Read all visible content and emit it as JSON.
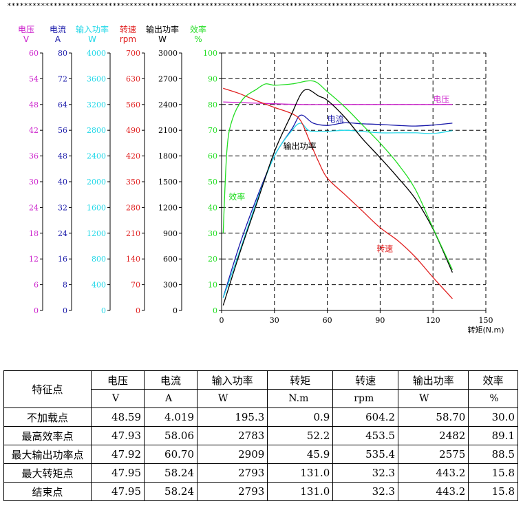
{
  "header": {
    "stars": "**********************************************************************************************************************************"
  },
  "chart_data": {
    "type": "line",
    "xlabel": "转矩(N.m)",
    "x_ticks": [
      0,
      30,
      60,
      90,
      120,
      150
    ],
    "xlim": [
      0,
      150
    ],
    "axes": [
      {
        "name": "电压",
        "unit": "V",
        "color": "#cc22cc",
        "max": 60,
        "ticks": [
          0,
          6,
          12,
          18,
          24,
          30,
          36,
          42,
          48,
          54,
          60
        ]
      },
      {
        "name": "电流",
        "unit": "A",
        "color": "#1a1aaa",
        "max": 80,
        "ticks": [
          0,
          8,
          16,
          24,
          32,
          40,
          48,
          56,
          64,
          72,
          80
        ]
      },
      {
        "name": "输入功率",
        "unit": "W",
        "color": "#22d8e8",
        "max": 4000,
        "ticks": [
          0,
          400,
          800,
          1200,
          1600,
          2000,
          2400,
          2800,
          3200,
          3600,
          4000
        ]
      },
      {
        "name": "转速",
        "unit": "rpm",
        "color": "#e02020",
        "max": 700,
        "ticks": [
          0,
          70,
          140,
          210,
          280,
          350,
          420,
          490,
          560,
          630,
          700
        ]
      },
      {
        "name": "输出功率",
        "unit": "W",
        "color": "#000000",
        "max": 3000,
        "ticks": [
          0,
          300,
          600,
          900,
          1200,
          1500,
          1800,
          2100,
          2400,
          2700,
          3000
        ]
      },
      {
        "name": "效率",
        "unit": "%",
        "color": "#22dd22",
        "max": 100,
        "ticks": [
          0,
          10,
          20,
          30,
          40,
          50,
          60,
          70,
          80,
          90,
          100
        ]
      }
    ],
    "series": [
      {
        "name": "电压",
        "axis": 0,
        "color": "#cc22cc",
        "label_at": [
          120,
          48.5
        ],
        "points": [
          [
            0.9,
            48.6
          ],
          [
            20,
            48.3
          ],
          [
            45,
            48.0
          ],
          [
            60,
            48.0
          ],
          [
            90,
            48.0
          ],
          [
            131,
            48.0
          ]
        ]
      },
      {
        "name": "电流",
        "axis": 1,
        "color": "#1a1aaa",
        "label_at": [
          60,
          58.6
        ],
        "points": [
          [
            0.9,
            4
          ],
          [
            10,
            20
          ],
          [
            20,
            35
          ],
          [
            30,
            48
          ],
          [
            40,
            56.5
          ],
          [
            45,
            60.7
          ],
          [
            52,
            58.2
          ],
          [
            60,
            57.5
          ],
          [
            70,
            58.3
          ],
          [
            80,
            58.0
          ],
          [
            90,
            57.8
          ],
          [
            100,
            57.5
          ],
          [
            110,
            57.3
          ],
          [
            120,
            57.6
          ],
          [
            131,
            58.2
          ]
        ]
      },
      {
        "name": "输入功率",
        "axis": 2,
        "color": "#22d8e8",
        "points": [
          [
            0.9,
            195
          ],
          [
            10,
            900
          ],
          [
            20,
            1700
          ],
          [
            30,
            2400
          ],
          [
            40,
            2800
          ],
          [
            45,
            2909
          ],
          [
            50,
            2790
          ],
          [
            60,
            2783
          ],
          [
            70,
            2800
          ],
          [
            80,
            2780
          ],
          [
            90,
            2760
          ],
          [
            100,
            2760
          ],
          [
            110,
            2760
          ],
          [
            120,
            2750
          ],
          [
            131,
            2793
          ]
        ]
      },
      {
        "name": "转速",
        "axis": 3,
        "color": "#e02020",
        "label_at": [
          88,
          160
        ],
        "points": [
          [
            0.9,
            604
          ],
          [
            10,
            590
          ],
          [
            20,
            570
          ],
          [
            30,
            552
          ],
          [
            40,
            535
          ],
          [
            45,
            515
          ],
          [
            50,
            460
          ],
          [
            55,
            405
          ],
          [
            60,
            360
          ],
          [
            70,
            315
          ],
          [
            80,
            270
          ],
          [
            90,
            225
          ],
          [
            100,
            190
          ],
          [
            110,
            145
          ],
          [
            120,
            90
          ],
          [
            131,
            32
          ]
        ]
      },
      {
        "name": "输出功率",
        "axis": 4,
        "color": "#000000",
        "label_at": [
          35,
          1880
        ],
        "points": [
          [
            0.9,
            59
          ],
          [
            10,
            650
          ],
          [
            20,
            1250
          ],
          [
            30,
            1850
          ],
          [
            40,
            2300
          ],
          [
            45,
            2520
          ],
          [
            49,
            2575
          ],
          [
            55,
            2500
          ],
          [
            60,
            2450
          ],
          [
            70,
            2250
          ],
          [
            80,
            2000
          ],
          [
            90,
            1780
          ],
          [
            100,
            1550
          ],
          [
            110,
            1300
          ],
          [
            120,
            950
          ],
          [
            131,
            443
          ]
        ]
      },
      {
        "name": "效率",
        "axis": 5,
        "color": "#22dd22",
        "label_at": [
          4,
          43
        ],
        "points": [
          [
            0.9,
            30
          ],
          [
            3,
            62
          ],
          [
            6,
            74
          ],
          [
            12,
            82
          ],
          [
            20,
            86
          ],
          [
            25,
            88
          ],
          [
            30,
            87.5
          ],
          [
            40,
            88
          ],
          [
            52,
            89.1
          ],
          [
            60,
            85
          ],
          [
            70,
            79
          ],
          [
            80,
            72
          ],
          [
            90,
            65
          ],
          [
            100,
            57
          ],
          [
            110,
            47
          ],
          [
            120,
            32
          ],
          [
            131,
            15.8
          ]
        ]
      }
    ]
  },
  "table": {
    "header_label": "特征点",
    "columns": [
      {
        "name": "电压",
        "unit": "V"
      },
      {
        "name": "电流",
        "unit": "A"
      },
      {
        "name": "输入功率",
        "unit": "W"
      },
      {
        "name": "转矩",
        "unit": "N.m"
      },
      {
        "name": "转速",
        "unit": "rpm"
      },
      {
        "name": "输出功率",
        "unit": "W"
      },
      {
        "name": "效率",
        "unit": "%"
      }
    ],
    "rows": [
      {
        "label": "不加载点",
        "values": [
          "48.59",
          "4.019",
          "195.3",
          "0.9",
          "604.2",
          "58.70",
          "30.0"
        ]
      },
      {
        "label": "最高效率点",
        "values": [
          "47.93",
          "58.06",
          "2783",
          "52.2",
          "453.5",
          "2482",
          "89.1"
        ]
      },
      {
        "label": "最大输出功率点",
        "values": [
          "47.92",
          "60.70",
          "2909",
          "45.9",
          "535.4",
          "2575",
          "88.5"
        ]
      },
      {
        "label": "最大转矩点",
        "values": [
          "47.95",
          "58.24",
          "2793",
          "131.0",
          "32.3",
          "443.2",
          "15.8"
        ]
      },
      {
        "label": "结束点",
        "values": [
          "47.95",
          "58.24",
          "2793",
          "131.0",
          "32.3",
          "443.2",
          "15.8"
        ]
      }
    ]
  }
}
